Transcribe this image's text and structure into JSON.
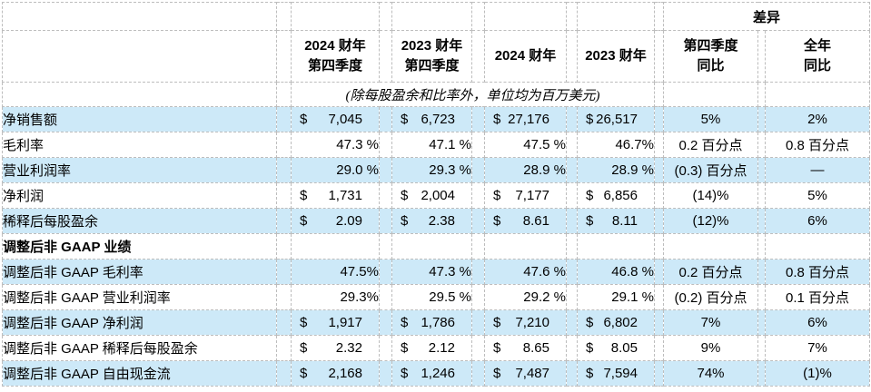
{
  "table": {
    "diff_header": "差异",
    "unit_note": "(除每股盈余和比率外，单位均为百万美元)",
    "currency_symbol": "$",
    "col_headers": [
      {
        "line1": "2024 财年",
        "line2": "第四季度"
      },
      {
        "line1": "2023 财年",
        "line2": "第四季度"
      },
      {
        "line1": "2024 财年",
        "line2": ""
      },
      {
        "line1": "2023 财年",
        "line2": ""
      },
      {
        "line1": "第四季度",
        "line2": "同比"
      },
      {
        "line1": "全年",
        "line2": "同比"
      }
    ],
    "colors": {
      "row_shade": "#cde9f8",
      "grid": "#bdbdbd"
    },
    "rows": [
      {
        "label": "净销售额",
        "type": "money",
        "shaded": true,
        "values": [
          "7,045",
          "6,723",
          "27,176",
          "26,517"
        ],
        "yoy": [
          "5%",
          "2%"
        ]
      },
      {
        "label": "毛利率",
        "type": "percent",
        "shaded": false,
        "values": [
          "47.3 %",
          "47.1 %",
          "47.5 %",
          "46.7%"
        ],
        "yoy": [
          "0.2 百分点",
          "0.8 百分点"
        ]
      },
      {
        "label": "营业利润率",
        "type": "percent",
        "shaded": true,
        "values": [
          "29.0 %",
          "29.3 %",
          "28.9 %",
          "28.9 %"
        ],
        "yoy": [
          "(0.3) 百分点",
          "—"
        ]
      },
      {
        "label": "净利润",
        "type": "money",
        "shaded": false,
        "values": [
          "1,731",
          "2,004",
          "7,177",
          "6,856"
        ],
        "yoy": [
          "(14)%",
          "5%"
        ]
      },
      {
        "label": "稀释后每股盈余",
        "type": "money",
        "shaded": true,
        "values": [
          "2.09",
          "2.38",
          "8.61",
          "8.11"
        ],
        "yoy": [
          "(12)%",
          "6%"
        ]
      },
      {
        "label": "调整后非 GAAP 业绩",
        "type": "section",
        "shaded": false,
        "values": [
          "",
          "",
          "",
          ""
        ],
        "yoy": [
          "",
          ""
        ]
      },
      {
        "label": "调整后非 GAAP 毛利率",
        "type": "percent",
        "shaded": true,
        "values": [
          "47.5%",
          "47.3 %",
          "47.6 %",
          "46.8 %"
        ],
        "yoy": [
          "0.2 百分点",
          "0.8 百分点"
        ]
      },
      {
        "label": "调整后非 GAAP 营业利润率",
        "type": "percent",
        "shaded": false,
        "values": [
          "29.3%",
          "29.5 %",
          "29.2 %",
          "29.1 %"
        ],
        "yoy": [
          "(0.2) 百分点",
          "0.1 百分点"
        ]
      },
      {
        "label": "调整后非 GAAP 净利润",
        "type": "money",
        "shaded": true,
        "values": [
          "1,917",
          "1,786",
          "7,210",
          "6,802"
        ],
        "yoy": [
          "7%",
          "6%"
        ]
      },
      {
        "label": "调整后非 GAAP 稀释后每股盈余",
        "type": "money",
        "shaded": false,
        "values": [
          "2.32",
          "2.12",
          "8.65",
          "8.05"
        ],
        "yoy": [
          "9%",
          "7%"
        ]
      },
      {
        "label": "调整后非 GAAP 自由现金流",
        "type": "money",
        "shaded": true,
        "values": [
          "2,168",
          "1,246",
          "7,487",
          "7,594"
        ],
        "yoy": [
          "74%",
          "(1)%"
        ]
      }
    ]
  }
}
